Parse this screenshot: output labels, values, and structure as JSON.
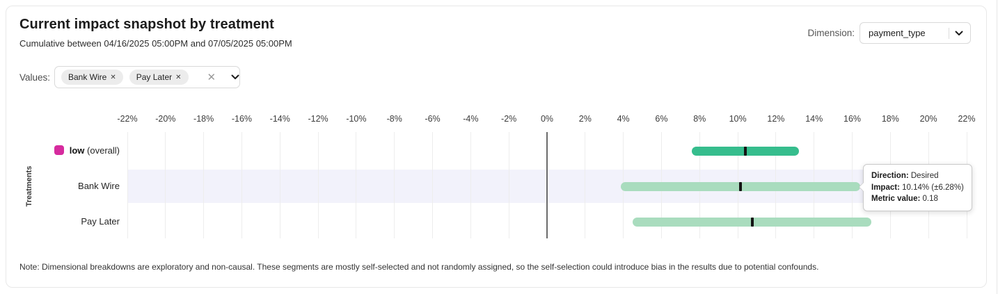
{
  "header": {
    "title": "Current impact snapshot by treatment",
    "subtitle": "Cumulative between 04/16/2025 05:00PM and 07/05/2025 05:00PM",
    "dimension_label": "Dimension:",
    "dimension_value": "payment_type"
  },
  "filters": {
    "values_label": "Values:",
    "chips": [
      {
        "label": "Bank Wire",
        "remove_glyph": "✕"
      },
      {
        "label": "Pay Later",
        "remove_glyph": "✕"
      }
    ],
    "clear_glyph": "✕"
  },
  "tooltip": {
    "direction_label": "Direction:",
    "direction_value": "Desired",
    "impact_label": "Impact:",
    "impact_value": "10.14% (±6.28%)",
    "metric_label": "Metric value:",
    "metric_value": "0.18"
  },
  "note": "Note: Dimensional breakdowns are exploratory and non-causal. These segments are mostly self-selected and not randomly assigned, so the self-selection could introduce bias in the results due to potential confounds.",
  "chart_data": {
    "type": "bar",
    "subtype": "horizontal-range-bars",
    "title": "Current impact snapshot by treatment",
    "ylabel": "Treatments",
    "axis": {
      "min": -22,
      "max": 22,
      "step": 2,
      "tick_suffix": "%"
    },
    "zero_line": 0,
    "grid": true,
    "highlight_band_color": "#f2f2fb",
    "rows": [
      {
        "label": "low",
        "label_suffix": " (overall)",
        "label_bold": true,
        "swatch_color": "#d62b9e",
        "bar_color": "#36bd8d",
        "low": 7.6,
        "center": 10.4,
        "high": 13.2,
        "highlighted": false
      },
      {
        "label": "Bank Wire",
        "label_suffix": "",
        "label_bold": false,
        "swatch_color": null,
        "bar_color": "#a9dcbe",
        "low": 3.86,
        "center": 10.14,
        "high": 16.42,
        "highlighted": true
      },
      {
        "label": "Pay Later",
        "label_suffix": "",
        "label_bold": false,
        "swatch_color": null,
        "bar_color": "#a9dcbe",
        "low": 4.5,
        "center": 10.75,
        "high": 17.0,
        "highlighted": false
      }
    ],
    "tooltip_target_row": "Bank Wire",
    "tooltip": {
      "direction": "Desired",
      "impact_pct": 10.14,
      "impact_ci_pct": 6.28,
      "metric_value": 0.18
    }
  }
}
